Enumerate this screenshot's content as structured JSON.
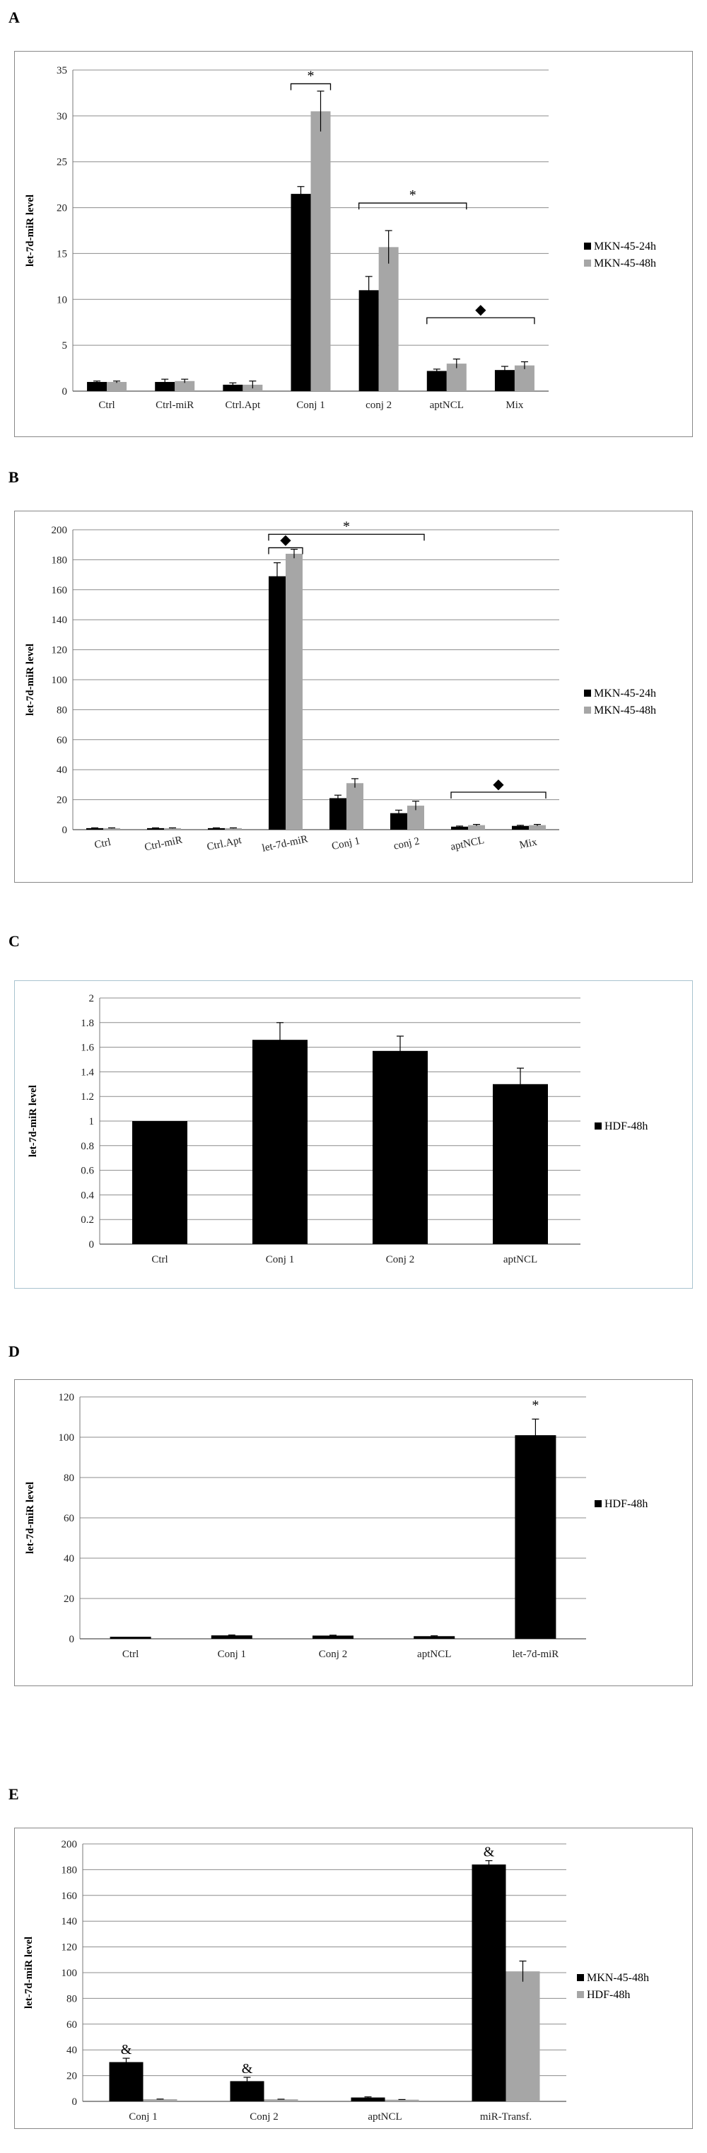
{
  "panels": [
    {
      "letter": "A",
      "chart_data": {
        "type": "bar",
        "ylabel": "let-7d-miR level",
        "ylim": [
          0,
          35
        ],
        "yticks": [
          0,
          5,
          10,
          15,
          20,
          25,
          30,
          35
        ],
        "grid": true,
        "legend_position": "right",
        "categories": [
          "Ctrl",
          "Ctrl-miR",
          "Ctrl.Apt",
          "Conj 1",
          "conj 2",
          "aptNCL",
          "Mix"
        ],
        "series": [
          {
            "name": "MKN-45-24h",
            "color": "#000000",
            "values": [
              1,
              1,
              0.7,
              21.5,
              11,
              2.2,
              2.3
            ],
            "errors": [
              0.1,
              0.3,
              0.2,
              0.8,
              1.5,
              0.2,
              0.4
            ]
          },
          {
            "name": "MKN-45-48h",
            "color": "#a6a6a6",
            "values": [
              1,
              1.1,
              0.7,
              30.5,
              15.7,
              3,
              2.8
            ],
            "errors": [
              0.1,
              0.2,
              0.4,
              2.2,
              1.8,
              0.5,
              0.4
            ]
          }
        ],
        "annotations": [
          {
            "text": "*",
            "from": 3,
            "to": 3,
            "level": 33.5
          },
          {
            "text": "*",
            "from": 4,
            "to": 5,
            "level": 20.5
          },
          {
            "text": "◆",
            "from": 5,
            "to": 6,
            "level": 8
          }
        ]
      }
    },
    {
      "letter": "B",
      "chart_data": {
        "type": "bar",
        "ylabel": "let-7d-miR level",
        "ylim": [
          0,
          200
        ],
        "yticks": [
          0,
          20,
          40,
          60,
          80,
          100,
          120,
          140,
          160,
          180,
          200
        ],
        "grid": true,
        "legend_position": "right",
        "categories": [
          "Ctrl",
          "Ctrl-miR",
          "Ctrl.Apt",
          "let-7d-miR",
          "Conj 1",
          "conj 2",
          "aptNCL",
          "Mix"
        ],
        "series": [
          {
            "name": "MKN-45-24h",
            "color": "#000000",
            "values": [
              1,
              1,
              1,
              169,
              21,
              11,
              2,
              2.5
            ],
            "errors": [
              0.2,
              0.2,
              0.2,
              9,
              2,
              2,
              0.4,
              0.4
            ]
          },
          {
            "name": "MKN-45-48h",
            "color": "#a6a6a6",
            "values": [
              1,
              1,
              1,
              184,
              31,
              16,
              3,
              3
            ],
            "errors": [
              0.2,
              0.2,
              0.2,
              3,
              3,
              3,
              0.5,
              0.5
            ]
          }
        ],
        "annotations": [
          {
            "text": "*",
            "from": 3,
            "to": 5,
            "level": 197
          },
          {
            "text": "◆",
            "from": 3,
            "to": 3,
            "level": 188
          },
          {
            "text": "◆",
            "from": 6,
            "to": 7,
            "level": 25
          }
        ]
      }
    },
    {
      "letter": "C",
      "chart_data": {
        "type": "bar",
        "ylabel": "let-7d-miR level",
        "ylim": [
          0,
          2
        ],
        "yticks": [
          0,
          0.2,
          0.4,
          0.6,
          0.8,
          1,
          1.2,
          1.4,
          1.6,
          1.8,
          2
        ],
        "grid": true,
        "legend_position": "right",
        "categories": [
          "Ctrl",
          "Conj 1",
          "Conj 2",
          "aptNCL"
        ],
        "series": [
          {
            "name": "HDF-48h",
            "color": "#000000",
            "values": [
              1,
              1.66,
              1.57,
              1.3
            ],
            "errors": [
              0,
              0.14,
              0.12,
              0.13
            ]
          }
        ],
        "annotations": []
      }
    },
    {
      "letter": "D",
      "chart_data": {
        "type": "bar",
        "ylabel": "let-7d-miR level",
        "ylim": [
          0,
          120
        ],
        "yticks": [
          0,
          20,
          40,
          60,
          80,
          100,
          120
        ],
        "grid": true,
        "legend_position": "right",
        "categories": [
          "Ctrl",
          "Conj 1",
          "Conj 2",
          "aptNCL",
          "let-7d-miR"
        ],
        "series": [
          {
            "name": "HDF-48h",
            "color": "#000000",
            "values": [
              1,
              1.7,
              1.6,
              1.3,
              101
            ],
            "errors": [
              0,
              0.2,
              0.2,
              0.2,
              8
            ]
          }
        ],
        "annotations": [
          {
            "text": "*",
            "from": 4,
            "to": 4,
            "level": 112,
            "bracket": false
          }
        ]
      }
    },
    {
      "letter": "E",
      "chart_data": {
        "type": "bar",
        "ylabel": "let-7d-miR level",
        "ylim": [
          0,
          200
        ],
        "yticks": [
          0,
          20,
          40,
          60,
          80,
          100,
          120,
          140,
          160,
          180,
          200
        ],
        "grid": true,
        "legend_position": "right",
        "categories": [
          "Conj 1",
          "Conj 2",
          "aptNCL",
          "miR-Transf."
        ],
        "series": [
          {
            "name": "MKN-45-48h",
            "color": "#000000",
            "values": [
              30.5,
              15.7,
              3,
              184
            ],
            "errors": [
              3,
              3,
              0.5,
              3
            ]
          },
          {
            "name": "HDF-48h",
            "color": "#a6a6a6",
            "values": [
              1.66,
              1.57,
              1.3,
              101
            ],
            "errors": [
              0.14,
              0.12,
              0.13,
              8
            ]
          }
        ],
        "annotations": [
          {
            "text": "&",
            "series": 0,
            "index": 0,
            "bracket": false
          },
          {
            "text": "&",
            "series": 0,
            "index": 1,
            "bracket": false
          },
          {
            "text": "&",
            "series": 0,
            "index": 3,
            "bracket": false
          }
        ]
      }
    }
  ]
}
